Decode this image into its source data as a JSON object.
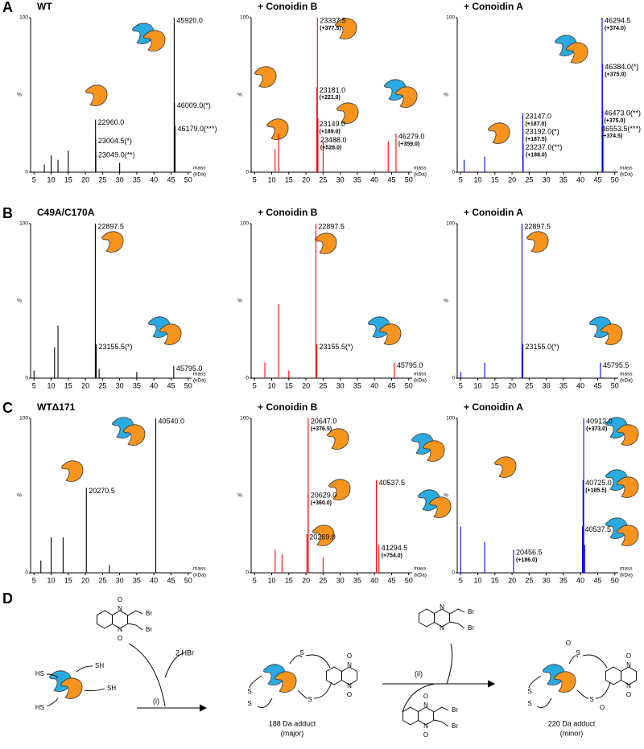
{
  "chart_data": [
    {
      "type": "spectrum",
      "panel": "A",
      "title": "WT",
      "color": "#000000",
      "x": [
        45.92,
        22.96,
        23.0045,
        23.049,
        46.009,
        46.179,
        8,
        10,
        12,
        15,
        30
      ],
      "values": [
        100,
        34,
        22,
        13,
        45,
        30,
        5,
        11,
        8,
        14,
        6
      ],
      "peak_labels": [
        "45920.0",
        "22960.0",
        "23004.5(*)",
        "23049.0(**)",
        "46009.0(*)",
        "46179.0(***)",
        null,
        null,
        null,
        null,
        null
      ],
      "shift_labels": [
        null,
        null,
        null,
        null,
        null,
        null,
        null,
        null,
        null,
        null,
        null
      ],
      "xlim": [
        4,
        51
      ],
      "ylim": [
        0,
        100
      ],
      "xticks": [
        5,
        10,
        15,
        20,
        25,
        30,
        35,
        40,
        45,
        50
      ],
      "yticks": [
        0,
        100
      ],
      "ylabel": "%",
      "xlabel": "mass",
      "xunit": "(kDa)"
    },
    {
      "type": "spectrum",
      "title": "+ Conoidin B",
      "color": "#ff0000",
      "x": [
        23.3375,
        23.181,
        23.149,
        23.488,
        46.279,
        11,
        12,
        25,
        44
      ],
      "values": [
        100,
        55,
        33,
        35,
        25,
        15,
        25,
        20,
        20
      ],
      "peak_labels": [
        "23337.5",
        "23181.0",
        "23149.0",
        "23488.0",
        "46279.0",
        null,
        null,
        null,
        null
      ],
      "shift_labels": [
        "(+377.5)",
        "(+221.0)",
        "(+189.0)",
        "(+528.0)",
        "(+359.0)",
        null,
        null,
        null,
        null
      ],
      "xlim": [
        4,
        51
      ],
      "ylim": [
        0,
        100
      ],
      "xticks": [
        5,
        10,
        15,
        20,
        25,
        30,
        35,
        40,
        45,
        50
      ],
      "yticks": [
        0,
        100
      ],
      "ylabel": "%",
      "xlabel": "mass",
      "xunit": "(kDa)"
    },
    {
      "type": "spectrum",
      "title": "+ Conoidin A",
      "color": "#0000ff",
      "x": [
        46.2945,
        46.384,
        46.473,
        46.5535,
        23.147,
        23.192,
        23.237,
        12,
        6
      ],
      "values": [
        100,
        70,
        40,
        30,
        38,
        28,
        18,
        10,
        8
      ],
      "peak_labels": [
        "46294.5",
        "46384.0(*)",
        "46473.0(**)",
        "46553.5(***)",
        "23147.0",
        "23192.0(*)",
        "23237.0(**)",
        null,
        null
      ],
      "shift_labels": [
        "(+374.0)",
        "(+375.0)",
        "(+375.0)",
        "(+374.5)",
        "(+187.0)",
        "(+187.5)",
        "(+188.0)",
        null,
        null
      ],
      "xlim": [
        4,
        51
      ],
      "ylim": [
        0,
        100
      ],
      "xticks": [
        5,
        10,
        15,
        20,
        25,
        30,
        35,
        40,
        45,
        50
      ],
      "yticks": [
        0,
        100
      ],
      "ylabel": "%",
      "xlabel": "mass",
      "xunit": "(kDa)"
    },
    {
      "type": "spectrum",
      "panel": "B",
      "title": "C49A/C170A",
      "color": "#000000",
      "x": [
        22.8975,
        23.1555,
        45.795,
        5,
        11,
        12,
        24,
        35
      ],
      "values": [
        100,
        22,
        8,
        5,
        20,
        34,
        6,
        4
      ],
      "peak_labels": [
        "22897.5",
        "23155.5(*)",
        "45795.0",
        null,
        null,
        null,
        null,
        null
      ],
      "shift_labels": [
        null,
        null,
        null,
        null,
        null,
        null,
        null,
        null
      ],
      "xlim": [
        4,
        51
      ],
      "ylim": [
        0,
        100
      ],
      "xticks": [
        5,
        10,
        15,
        20,
        25,
        30,
        35,
        40,
        45,
        50
      ],
      "yticks": [
        0,
        100
      ],
      "ylabel": "%",
      "xlabel": "mass",
      "xunit": "(kDa)"
    },
    {
      "type": "spectrum",
      "title": "+ Conoidin B",
      "color": "#ff0000",
      "x": [
        22.8975,
        23.1555,
        45.795,
        8,
        12,
        15
      ],
      "values": [
        100,
        22,
        10,
        10,
        48,
        5
      ],
      "peak_labels": [
        "22897.5",
        "23155.5(*)",
        "45795.0",
        null,
        null,
        null
      ],
      "shift_labels": [
        null,
        null,
        null,
        null,
        null,
        null
      ],
      "xlim": [
        4,
        51
      ],
      "ylim": [
        0,
        100
      ],
      "xticks": [
        5,
        10,
        15,
        20,
        25,
        30,
        35,
        40,
        45,
        50
      ],
      "yticks": [
        0,
        100
      ],
      "ylabel": "%",
      "xlabel": "mass",
      "xunit": "(kDa)"
    },
    {
      "type": "spectrum",
      "title": "+ Conoidin A",
      "color": "#0000ff",
      "x": [
        22.8975,
        23.155,
        45.7955,
        5,
        12
      ],
      "values": [
        100,
        22,
        10,
        4,
        10
      ],
      "peak_labels": [
        "22897.5",
        "23155.0(*)",
        "45795.5",
        null,
        null
      ],
      "shift_labels": [
        null,
        null,
        null,
        null,
        null
      ],
      "xlim": [
        4,
        51
      ],
      "ylim": [
        0,
        100
      ],
      "xticks": [
        5,
        10,
        15,
        20,
        25,
        30,
        35,
        40,
        45,
        50
      ],
      "yticks": [
        0,
        100
      ],
      "ylabel": "%",
      "xlabel": "mass",
      "xunit": "(kDa)"
    },
    {
      "type": "spectrum",
      "panel": "C",
      "title": "WTΔ171",
      "color": "#000000",
      "x": [
        40.54,
        20.2705,
        7,
        10,
        13.5,
        27
      ],
      "values": [
        100,
        55,
        8,
        23,
        23,
        5
      ],
      "peak_labels": [
        "40540.0",
        "20270.5",
        null,
        null,
        null,
        null
      ],
      "shift_labels": [
        null,
        null,
        null,
        null,
        null,
        null
      ],
      "xlim": [
        4,
        51
      ],
      "ylim": [
        0,
        100
      ],
      "xticks": [
        5,
        10,
        15,
        20,
        25,
        30,
        35,
        40,
        45,
        50
      ],
      "yticks": [
        0,
        100
      ],
      "ylabel": "%",
      "xlabel": "mass",
      "xunit": "(kDa)"
    },
    {
      "type": "spectrum",
      "title": "+ Conoidin B",
      "color": "#ff0000",
      "x": [
        20.647,
        20.629,
        20.269,
        40.5375,
        41.2945,
        11,
        13,
        25
      ],
      "values": [
        100,
        52,
        25,
        60,
        18,
        15,
        12,
        10
      ],
      "peak_labels": [
        "20647.0",
        "20629.0",
        "20269.0",
        "40537.5",
        "41294.5",
        null,
        null,
        null
      ],
      "shift_labels": [
        "(+376.5)",
        "(+360.0)",
        null,
        null,
        "(+754.0)",
        null,
        null,
        null
      ],
      "xlim": [
        4,
        51
      ],
      "ylim": [
        0,
        100
      ],
      "xticks": [
        5,
        10,
        15,
        20,
        25,
        30,
        35,
        40,
        45,
        50
      ],
      "yticks": [
        0,
        100
      ],
      "ylabel": "%",
      "xlabel": "mass",
      "xunit": "(kDa)"
    },
    {
      "type": "spectrum",
      "title": "+ Conoidin A",
      "color": "#0000ff",
      "x": [
        40.913,
        40.725,
        40.5375,
        20.4565,
        5,
        12,
        41.2
      ],
      "values": [
        100,
        60,
        30,
        15,
        30,
        20,
        18
      ],
      "peak_labels": [
        "40913.0",
        "40725.0",
        "40537.5",
        "20456.5",
        null,
        null,
        null
      ],
      "shift_labels": [
        "(+373.0)",
        "(+185.5)",
        null,
        "(+186.0)",
        null,
        null,
        null
      ],
      "xlim": [
        4,
        51
      ],
      "ylim": [
        0,
        100
      ],
      "xticks": [
        5,
        10,
        15,
        20,
        25,
        30,
        35,
        40,
        45,
        50
      ],
      "yticks": [
        0,
        100
      ],
      "ylabel": "%",
      "xlabel": "mass",
      "xunit": "(kDa)"
    }
  ],
  "scheme": {
    "panel": "D",
    "byproduct": "2 HBr",
    "step1": "(i)",
    "step2": "(ii)",
    "product1": "188 Da adduct",
    "product1_note": "(major)",
    "product2": "220 Da adduct",
    "product2_note": "(minor)",
    "thiol": "SH",
    "thiol_left": "HS",
    "sulfur": "S",
    "bromine": "Br",
    "nitrogen": "N",
    "oxygen": "O"
  }
}
